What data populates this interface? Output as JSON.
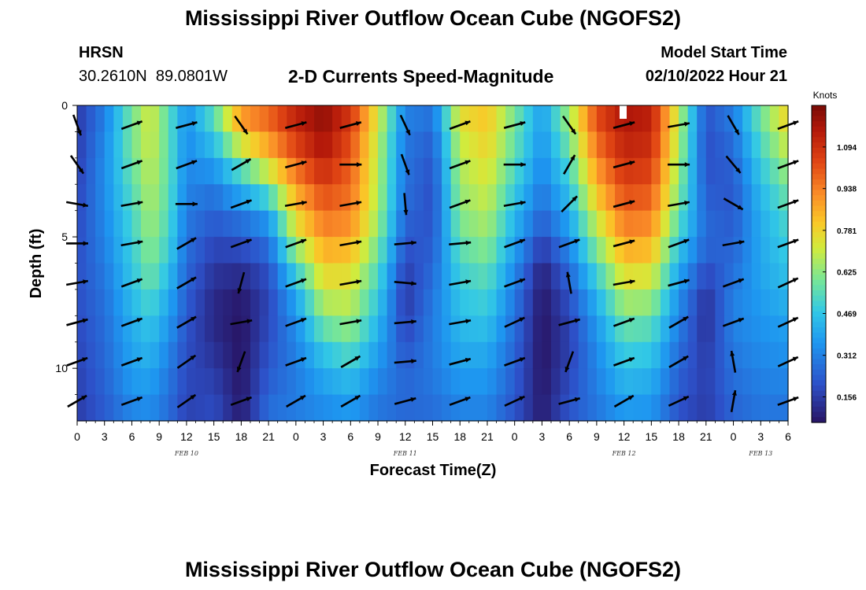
{
  "figure": {
    "title": "Mississippi River Outflow Ocean Cube (NGOFS2)",
    "title_repeat": "Mississippi River Outflow Ocean Cube (NGOFS2)",
    "station": {
      "name": "HRSN",
      "coords": "30.2610N  89.0801W"
    },
    "model": {
      "label": "Model Start Time",
      "value": "02/10/2022 Hour 21"
    }
  },
  "chart_data": {
    "type": "heatmap",
    "title": "2-D Currents Speed-Magnitude",
    "xlabel": "Forecast Time(Z)",
    "ylabel": "Depth (ft)",
    "colorbar_label": "Knots",
    "colorbar_ticks": [
      "1.094",
      "0.938",
      "0.781",
      "0.625",
      "0.469",
      "0.312",
      "0.156"
    ],
    "colorbar_range": [
      0.06,
      1.25
    ],
    "x_range_hours": [
      0,
      78
    ],
    "x_tick_labels": [
      "0",
      "3",
      "6",
      "9",
      "12",
      "15",
      "18",
      "21",
      "0",
      "3",
      "6",
      "9",
      "12",
      "15",
      "18",
      "21",
      "0",
      "3",
      "6",
      "9",
      "12",
      "15",
      "18",
      "21",
      "0",
      "3",
      "6"
    ],
    "day_labels": [
      {
        "label": "FEB 10",
        "hour": 12
      },
      {
        "label": "FEB 11",
        "hour": 36
      },
      {
        "label": "FEB 12",
        "hour": 60
      },
      {
        "label": "FEB 13",
        "hour": 75
      }
    ],
    "y_range_ft": [
      0,
      12
    ],
    "y_tick_labels": [
      "0",
      "5",
      "10"
    ],
    "y_tick_values": [
      0,
      5,
      10
    ],
    "depth_levels_ft": [
      0,
      1,
      2,
      3,
      4,
      5,
      6,
      7,
      8,
      9,
      10,
      11,
      12
    ],
    "column_profiles": [
      {
        "hour": 0,
        "speeds": [
          0.15,
          0.15,
          0.16,
          0.17,
          0.18,
          0.19,
          0.2,
          0.2,
          0.19,
          0.18,
          0.17,
          0.16,
          0.15
        ]
      },
      {
        "hour": 3,
        "speeds": [
          0.3,
          0.32,
          0.34,
          0.34,
          0.33,
          0.32,
          0.3,
          0.28,
          0.27,
          0.26,
          0.25,
          0.24,
          0.22
        ]
      },
      {
        "hour": 6,
        "speeds": [
          0.58,
          0.6,
          0.58,
          0.55,
          0.52,
          0.5,
          0.48,
          0.46,
          0.42,
          0.4,
          0.38,
          0.35,
          0.3
        ]
      },
      {
        "hour": 8,
        "speeds": [
          0.72,
          0.72,
          0.7,
          0.68,
          0.66,
          0.64,
          0.6,
          0.56,
          0.48,
          0.45,
          0.4,
          0.36,
          0.32
        ]
      },
      {
        "hour": 10,
        "speeds": [
          0.55,
          0.56,
          0.56,
          0.56,
          0.54,
          0.52,
          0.48,
          0.42,
          0.38,
          0.34,
          0.3,
          0.28,
          0.26
        ]
      },
      {
        "hour": 12,
        "speeds": [
          0.35,
          0.34,
          0.33,
          0.32,
          0.3,
          0.28,
          0.26,
          0.24,
          0.22,
          0.2,
          0.19,
          0.18,
          0.16
        ]
      },
      {
        "hour": 15,
        "speeds": [
          0.58,
          0.5,
          0.4,
          0.3,
          0.25,
          0.2,
          0.15,
          0.12,
          0.1,
          0.12,
          0.15,
          0.18,
          0.2
        ]
      },
      {
        "hour": 18,
        "speeds": [
          0.95,
          0.82,
          0.62,
          0.45,
          0.32,
          0.22,
          0.15,
          0.08,
          0.06,
          0.06,
          0.06,
          0.07,
          0.08
        ]
      },
      {
        "hour": 21,
        "speeds": [
          1.0,
          0.95,
          0.8,
          0.62,
          0.4,
          0.3,
          0.22,
          0.18,
          0.18,
          0.2,
          0.22,
          0.25,
          0.28
        ]
      },
      {
        "hour": 24,
        "speeds": [
          1.15,
          1.1,
          1.0,
          0.9,
          0.8,
          0.7,
          0.55,
          0.42,
          0.35,
          0.32,
          0.3,
          0.3,
          0.3
        ]
      },
      {
        "hour": 27,
        "speeds": [
          1.22,
          1.2,
          1.15,
          1.05,
          0.98,
          0.9,
          0.8,
          0.72,
          0.62,
          0.5,
          0.42,
          0.36,
          0.32
        ]
      },
      {
        "hour": 30,
        "speeds": [
          1.1,
          1.05,
          1.0,
          0.98,
          0.94,
          0.88,
          0.78,
          0.72,
          0.66,
          0.58,
          0.48,
          0.4,
          0.34
        ]
      },
      {
        "hour": 33,
        "speeds": [
          0.75,
          0.7,
          0.68,
          0.68,
          0.66,
          0.62,
          0.55,
          0.5,
          0.45,
          0.4,
          0.35,
          0.3,
          0.28
        ]
      },
      {
        "hour": 36,
        "speeds": [
          0.32,
          0.3,
          0.28,
          0.28,
          0.26,
          0.22,
          0.18,
          0.14,
          0.16,
          0.2,
          0.24,
          0.26,
          0.25
        ]
      },
      {
        "hour": 39,
        "speeds": [
          0.3,
          0.25,
          0.22,
          0.2,
          0.2,
          0.22,
          0.25,
          0.28,
          0.3,
          0.3,
          0.3,
          0.28,
          0.26
        ]
      },
      {
        "hour": 42,
        "speeds": [
          0.78,
          0.72,
          0.68,
          0.65,
          0.62,
          0.58,
          0.52,
          0.48,
          0.45,
          0.42,
          0.38,
          0.34,
          0.3
        ]
      },
      {
        "hour": 45,
        "speeds": [
          0.82,
          0.8,
          0.76,
          0.72,
          0.68,
          0.64,
          0.58,
          0.52,
          0.48,
          0.42,
          0.38,
          0.34,
          0.3
        ]
      },
      {
        "hour": 48,
        "speeds": [
          0.6,
          0.58,
          0.55,
          0.5,
          0.45,
          0.4,
          0.35,
          0.3,
          0.28,
          0.25,
          0.24,
          0.22,
          0.2
        ]
      },
      {
        "hour": 51,
        "speeds": [
          0.38,
          0.36,
          0.34,
          0.3,
          0.26,
          0.2,
          0.1,
          0.07,
          0.06,
          0.06,
          0.06,
          0.07,
          0.08
        ]
      },
      {
        "hour": 54,
        "speeds": [
          0.68,
          0.62,
          0.55,
          0.48,
          0.42,
          0.35,
          0.28,
          0.22,
          0.18,
          0.16,
          0.18,
          0.2,
          0.22
        ]
      },
      {
        "hour": 57,
        "speeds": [
          1.05,
          1.0,
          0.92,
          0.85,
          0.75,
          0.65,
          0.55,
          0.45,
          0.38,
          0.34,
          0.32,
          0.3,
          0.28
        ]
      },
      {
        "hour": 60,
        "speeds": [
          1.18,
          1.15,
          1.1,
          1.05,
          0.98,
          0.9,
          0.8,
          0.7,
          0.6,
          0.52,
          0.46,
          0.4,
          0.34
        ]
      },
      {
        "hour": 63,
        "speeds": [
          1.15,
          1.12,
          1.08,
          1.02,
          0.96,
          0.88,
          0.78,
          0.68,
          0.58,
          0.5,
          0.44,
          0.38,
          0.34
        ]
      },
      {
        "hour": 66,
        "speeds": [
          0.7,
          0.68,
          0.66,
          0.62,
          0.58,
          0.5,
          0.42,
          0.36,
          0.32,
          0.28,
          0.25,
          0.22,
          0.2
        ]
      },
      {
        "hour": 69,
        "speeds": [
          0.22,
          0.2,
          0.2,
          0.22,
          0.25,
          0.26,
          0.22,
          0.14,
          0.12,
          0.14,
          0.16,
          0.16,
          0.15
        ]
      },
      {
        "hour": 72,
        "speeds": [
          0.32,
          0.28,
          0.25,
          0.22,
          0.22,
          0.24,
          0.26,
          0.3,
          0.32,
          0.3,
          0.28,
          0.26,
          0.24
        ]
      },
      {
        "hour": 75,
        "speeds": [
          0.6,
          0.55,
          0.5,
          0.45,
          0.42,
          0.4,
          0.4,
          0.38,
          0.36,
          0.34,
          0.32,
          0.3,
          0.28
        ]
      },
      {
        "hour": 78,
        "speeds": [
          0.82,
          0.75,
          0.68,
          0.6,
          0.55,
          0.5,
          0.48,
          0.44,
          0.4,
          0.36,
          0.34,
          0.3,
          0.28
        ]
      }
    ],
    "vector_hours": [
      0,
      6,
      12,
      18,
      24,
      30,
      36,
      42,
      48,
      54,
      60,
      66,
      72,
      78
    ],
    "vector_directions_deg_ccw_from_east": [
      [
        -70,
        20,
        15,
        -55,
        15,
        15,
        -65,
        20,
        15,
        -55,
        15,
        10,
        -60,
        20
      ],
      [
        -55,
        20,
        20,
        30,
        15,
        0,
        -70,
        20,
        0,
        60,
        15,
        0,
        -50,
        20
      ],
      [
        -10,
        10,
        0,
        20,
        10,
        10,
        -85,
        20,
        10,
        45,
        15,
        10,
        -30,
        20
      ],
      [
        0,
        10,
        30,
        20,
        20,
        10,
        5,
        5,
        20,
        20,
        15,
        20,
        10,
        20
      ],
      [
        10,
        20,
        30,
        -105,
        20,
        10,
        -5,
        10,
        20,
        100,
        10,
        15,
        20,
        25
      ],
      [
        15,
        20,
        30,
        10,
        20,
        10,
        5,
        10,
        25,
        15,
        20,
        30,
        20,
        25
      ],
      [
        20,
        20,
        35,
        -110,
        20,
        30,
        5,
        15,
        20,
        -110,
        20,
        30,
        100,
        25
      ],
      [
        30,
        20,
        35,
        20,
        30,
        30,
        15,
        20,
        25,
        15,
        30,
        25,
        80,
        20
      ]
    ]
  }
}
